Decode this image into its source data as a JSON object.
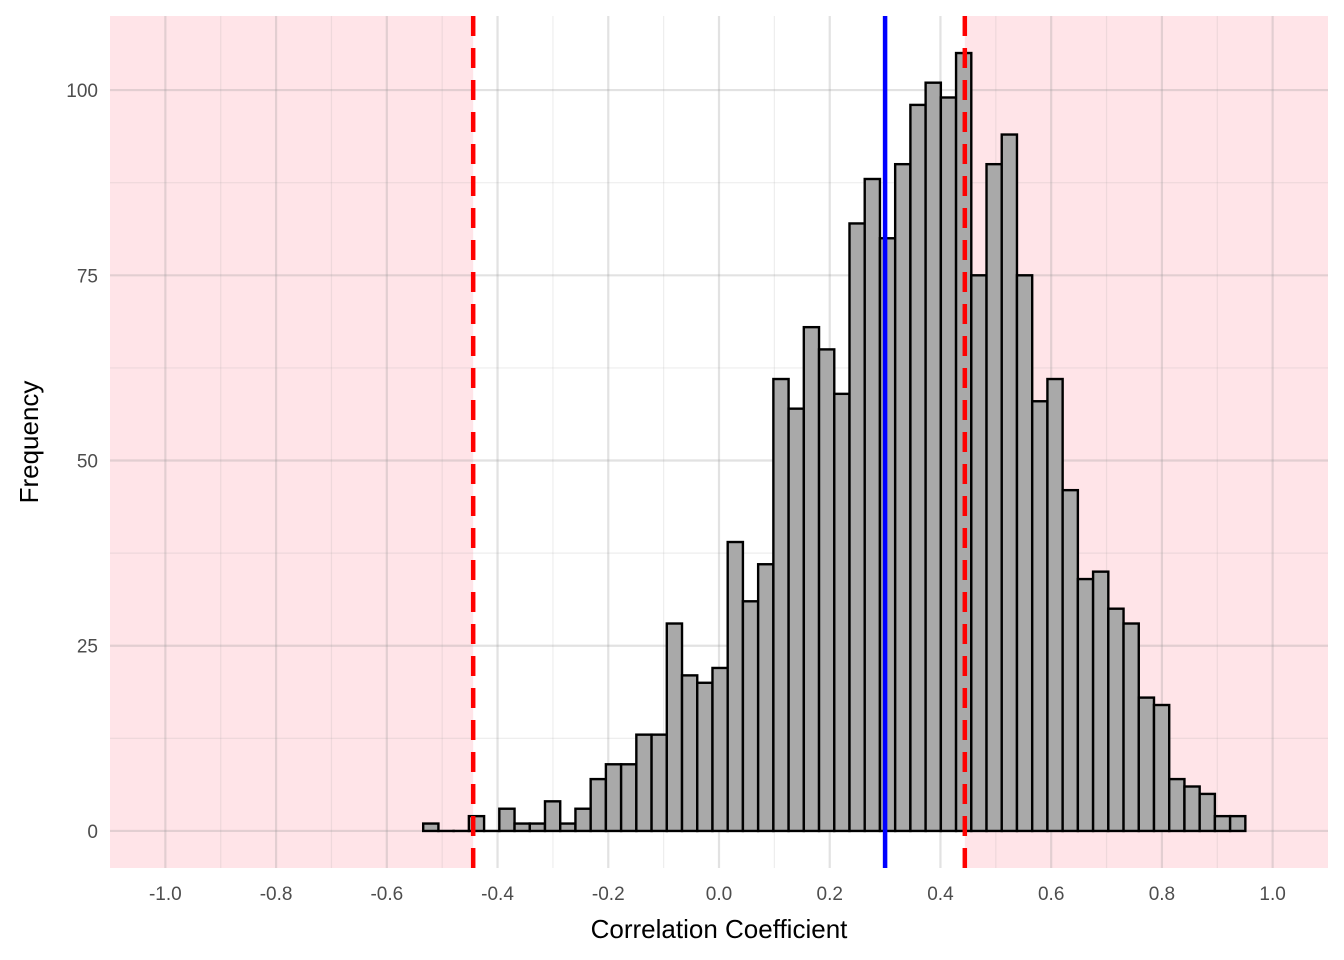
{
  "chart_data": {
    "type": "histogram",
    "xlabel": "Correlation Coefficient",
    "ylabel": "Frequency",
    "xlim": [
      -1.1,
      1.1
    ],
    "ylim": [
      -5,
      110
    ],
    "x_ticks": [
      "-1.0",
      "-0.8",
      "-0.6",
      "-0.4",
      "-0.2",
      "0.0",
      "0.2",
      "0.4",
      "0.6",
      "0.8",
      "1.0"
    ],
    "y_ticks": [
      "0",
      "25",
      "50",
      "75",
      "100"
    ],
    "grid": true,
    "bin_width": 0.0275,
    "bins": [
      {
        "x_start": -0.5343,
        "x_end": -0.5068,
        "count": 1
      },
      {
        "x_start": -0.5068,
        "x_end": -0.4793,
        "count": 0
      },
      {
        "x_start": -0.4793,
        "x_end": -0.4518,
        "count": 0
      },
      {
        "x_start": -0.4518,
        "x_end": -0.4243,
        "count": 2
      },
      {
        "x_start": -0.4243,
        "x_end": -0.3968,
        "count": 0
      },
      {
        "x_start": -0.3968,
        "x_end": -0.3693,
        "count": 3
      },
      {
        "x_start": -0.3693,
        "x_end": -0.3418,
        "count": 1
      },
      {
        "x_start": -0.3418,
        "x_end": -0.3143,
        "count": 1
      },
      {
        "x_start": -0.3143,
        "x_end": -0.2868,
        "count": 4
      },
      {
        "x_start": -0.2868,
        "x_end": -0.2593,
        "count": 1
      },
      {
        "x_start": -0.2593,
        "x_end": -0.2318,
        "count": 3
      },
      {
        "x_start": -0.2318,
        "x_end": -0.2043,
        "count": 7
      },
      {
        "x_start": -0.2043,
        "x_end": -0.1768,
        "count": 9
      },
      {
        "x_start": -0.1768,
        "x_end": -0.1493,
        "count": 9
      },
      {
        "x_start": -0.1493,
        "x_end": -0.1218,
        "count": 13
      },
      {
        "x_start": -0.1218,
        "x_end": -0.0943,
        "count": 13
      },
      {
        "x_start": -0.0943,
        "x_end": -0.0668,
        "count": 28
      },
      {
        "x_start": -0.0668,
        "x_end": -0.0393,
        "count": 21
      },
      {
        "x_start": -0.0393,
        "x_end": -0.0118,
        "count": 20
      },
      {
        "x_start": -0.0118,
        "x_end": 0.0157,
        "count": 22
      },
      {
        "x_start": 0.0157,
        "x_end": 0.0432,
        "count": 39
      },
      {
        "x_start": 0.0432,
        "x_end": 0.0707,
        "count": 31
      },
      {
        "x_start": 0.0707,
        "x_end": 0.0982,
        "count": 36
      },
      {
        "x_start": 0.0982,
        "x_end": 0.1257,
        "count": 61
      },
      {
        "x_start": 0.1257,
        "x_end": 0.1532,
        "count": 57
      },
      {
        "x_start": 0.1532,
        "x_end": 0.1807,
        "count": 68
      },
      {
        "x_start": 0.1807,
        "x_end": 0.2082,
        "count": 65
      },
      {
        "x_start": 0.2082,
        "x_end": 0.2357,
        "count": 59
      },
      {
        "x_start": 0.2357,
        "x_end": 0.2632,
        "count": 82
      },
      {
        "x_start": 0.2632,
        "x_end": 0.2907,
        "count": 88
      },
      {
        "x_start": 0.2907,
        "x_end": 0.3182,
        "count": 80
      },
      {
        "x_start": 0.3182,
        "x_end": 0.3457,
        "count": 90
      },
      {
        "x_start": 0.3457,
        "x_end": 0.3732,
        "count": 98
      },
      {
        "x_start": 0.3732,
        "x_end": 0.4007,
        "count": 101
      },
      {
        "x_start": 0.4007,
        "x_end": 0.4282,
        "count": 99
      },
      {
        "x_start": 0.4282,
        "x_end": 0.4557,
        "count": 105
      },
      {
        "x_start": 0.4557,
        "x_end": 0.4832,
        "count": 75
      },
      {
        "x_start": 0.4832,
        "x_end": 0.5107,
        "count": 90
      },
      {
        "x_start": 0.5107,
        "x_end": 0.5382,
        "count": 94
      },
      {
        "x_start": 0.5382,
        "x_end": 0.5657,
        "count": 75
      },
      {
        "x_start": 0.5657,
        "x_end": 0.5932,
        "count": 58
      },
      {
        "x_start": 0.5932,
        "x_end": 0.6207,
        "count": 61
      },
      {
        "x_start": 0.6207,
        "x_end": 0.6482,
        "count": 46
      },
      {
        "x_start": 0.6482,
        "x_end": 0.6757,
        "count": 34
      },
      {
        "x_start": 0.6757,
        "x_end": 0.7032,
        "count": 35
      },
      {
        "x_start": 0.7032,
        "x_end": 0.7307,
        "count": 30
      },
      {
        "x_start": 0.7307,
        "x_end": 0.7582,
        "count": 28
      },
      {
        "x_start": 0.7582,
        "x_end": 0.7857,
        "count": 18
      },
      {
        "x_start": 0.7857,
        "x_end": 0.8132,
        "count": 17
      },
      {
        "x_start": 0.8132,
        "x_end": 0.8407,
        "count": 7
      },
      {
        "x_start": 0.8407,
        "x_end": 0.8682,
        "count": 6
      },
      {
        "x_start": 0.8682,
        "x_end": 0.8957,
        "count": 5
      },
      {
        "x_start": 0.8957,
        "x_end": 0.9232,
        "count": 2
      },
      {
        "x_start": 0.9232,
        "x_end": 0.9507,
        "count": 2
      }
    ],
    "reference_lines": [
      {
        "x": -0.444,
        "style": "dashed",
        "color": "#ff0000"
      },
      {
        "x": 0.444,
        "style": "dashed",
        "color": "#ff0000"
      },
      {
        "x": 0.3,
        "style": "solid",
        "color": "#0000ff"
      }
    ],
    "shaded_regions": [
      {
        "x_start": -1.1,
        "x_end": -0.444,
        "color": "#ffe4e8"
      },
      {
        "x_start": 0.444,
        "x_end": 1.1,
        "color": "#ffe4e8"
      }
    ],
    "bar_fill": "#a9a9a9",
    "bar_stroke": "#000000"
  }
}
